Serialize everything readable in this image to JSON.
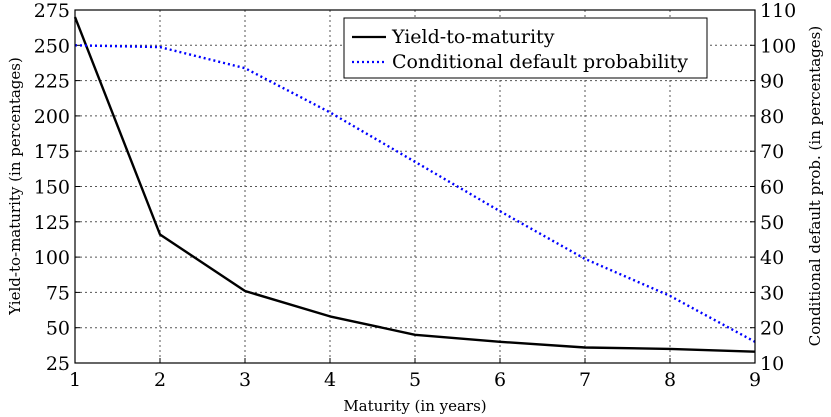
{
  "chart_data": {
    "type": "line",
    "x": [
      1,
      2,
      3,
      4,
      5,
      6,
      7,
      8,
      9
    ],
    "xlabel": "Maturity (in years)",
    "ylabel_left": "Yield-to-maturity (in percentages)",
    "ylabel_right": "Conditional default prob. (in percentages)",
    "xlim": [
      1,
      9
    ],
    "ylim_left": [
      25,
      275
    ],
    "ylim_right": [
      10,
      110
    ],
    "x_ticks": [
      "1",
      "2",
      "3",
      "4",
      "5",
      "6",
      "7",
      "8",
      "9"
    ],
    "y_ticks_left": [
      "25",
      "50",
      "75",
      "100",
      "125",
      "150",
      "175",
      "200",
      "225",
      "250",
      "275"
    ],
    "y_ticks_right": [
      "10",
      "20",
      "30",
      "40",
      "50",
      "60",
      "70",
      "80",
      "90",
      "100",
      "110"
    ],
    "grid": true,
    "legend_position": "top-right",
    "series": [
      {
        "name": "Yield-to-maturity",
        "axis": "left",
        "style": "solid",
        "color": "#000000",
        "values": [
          270,
          116,
          76,
          58,
          45,
          40,
          36,
          35,
          33
        ]
      },
      {
        "name": "Conditional default probability",
        "axis": "right",
        "style": "dotted",
        "color": "#0000ff",
        "values": [
          100,
          99.5,
          93.5,
          81,
          67,
          53,
          39.5,
          29,
          16
        ]
      }
    ]
  }
}
